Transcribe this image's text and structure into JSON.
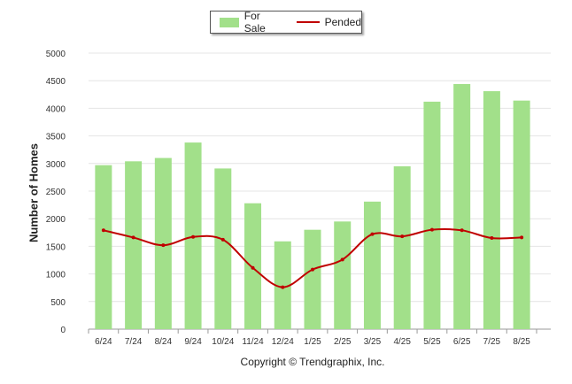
{
  "chart_data": {
    "type": "bar",
    "categories": [
      "6/24",
      "7/24",
      "8/24",
      "9/24",
      "10/24",
      "11/24",
      "12/24",
      "1/25",
      "2/25",
      "3/25",
      "4/25",
      "5/25",
      "6/25",
      "7/25",
      "8/25"
    ],
    "series": [
      {
        "name": "For Sale",
        "type": "bar",
        "color": "#a2e08a",
        "values": [
          2970,
          3040,
          3100,
          3380,
          2910,
          2280,
          1590,
          1800,
          1950,
          2310,
          2950,
          4120,
          4440,
          4310,
          4140
        ]
      },
      {
        "name": "Pended",
        "type": "line",
        "color": "#c00000",
        "values": [
          1790,
          1660,
          1520,
          1670,
          1620,
          1110,
          760,
          1080,
          1260,
          1720,
          1680,
          1800,
          1790,
          1650,
          1660
        ]
      }
    ],
    "ylabel": "Number of Homes",
    "xlabel": "",
    "ylim": [
      0,
      5000
    ],
    "yticks": [
      0,
      500,
      1000,
      1500,
      2000,
      2500,
      3000,
      3500,
      4000,
      4500,
      5000
    ],
    "grid": true,
    "legend_position": "top-center"
  },
  "footer": {
    "copyright": "Copyright © Trendgraphix, Inc."
  }
}
